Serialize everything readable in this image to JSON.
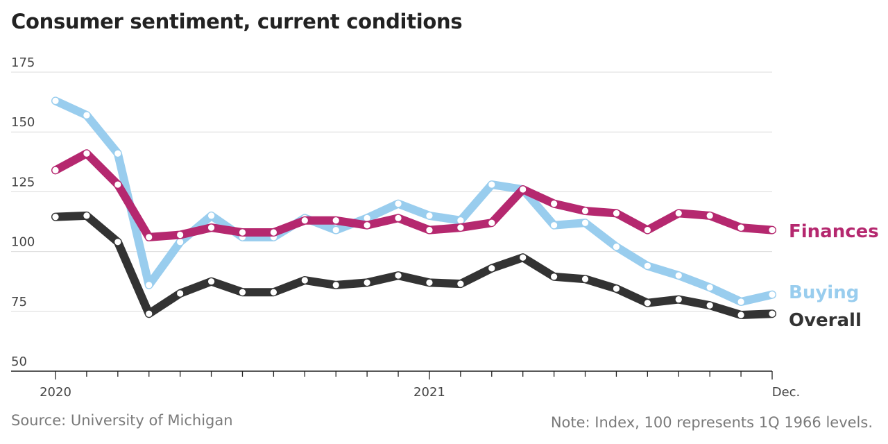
{
  "chart_data": {
    "type": "line",
    "title": "Consumer sentiment, current conditions",
    "source": "Source: University of Michigan",
    "note": "Note: Index, 100 represents 1Q 1966 levels.",
    "xlabel": "",
    "ylabel": "",
    "ylim": [
      50,
      175
    ],
    "yticks": [
      50,
      75,
      100,
      125,
      150,
      175
    ],
    "x_tick_labels": [
      {
        "index": 0,
        "label": "2020"
      },
      {
        "index": 12,
        "label": "2021"
      },
      {
        "index": 23,
        "label": "Dec."
      }
    ],
    "months": 24,
    "grid": true,
    "series": [
      {
        "name": "Buying",
        "color": "#99cdee",
        "values": [
          163,
          157,
          141,
          86,
          104,
          115,
          106,
          106,
          114,
          109,
          114,
          120,
          115,
          113,
          128,
          126,
          111,
          112,
          102,
          94,
          90,
          85,
          79,
          82
        ]
      },
      {
        "name": "Finances",
        "color": "#b5286f",
        "values": [
          134,
          141,
          128,
          106,
          107,
          110,
          108,
          108,
          113,
          113,
          111,
          114,
          109,
          110,
          112,
          126,
          120,
          117,
          116,
          109,
          116,
          115,
          110,
          109
        ]
      },
      {
        "name": "Overall",
        "color": "#333333",
        "values": [
          114.5,
          115,
          104,
          74,
          82.5,
          87.5,
          83,
          83,
          88,
          86,
          87,
          90,
          87,
          86.5,
          93,
          97.5,
          89.5,
          88.5,
          84.5,
          78.5,
          80,
          77.5,
          73.5,
          74
        ]
      }
    ]
  }
}
